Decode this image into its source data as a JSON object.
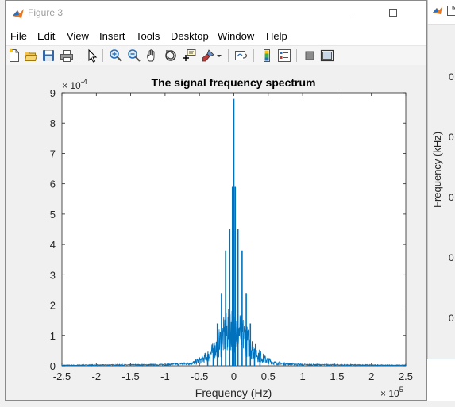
{
  "window": {
    "title": "Figure 3",
    "menu": [
      "File",
      "Edit",
      "View",
      "Insert",
      "Tools",
      "Desktop",
      "Window",
      "Help"
    ]
  },
  "toolbar": {
    "icons": [
      "new-figure-icon",
      "open-file-icon",
      "save-icon",
      "print-icon",
      "pointer-icon",
      "zoom-in-icon",
      "zoom-out-icon",
      "pan-icon",
      "rotate-3d-icon",
      "data-cursor-icon",
      "brush-icon",
      "link-plot-icon",
      "colorbar-icon",
      "legend-icon",
      "hide-plot-tools-icon",
      "show-plot-tools-icon"
    ]
  },
  "chart_data": {
    "type": "line",
    "title": "The signal frequency spectrum",
    "xlabel": "Frequency (Hz)",
    "ylabel": "",
    "x_exponent_label": "10",
    "x_exponent": "5",
    "y_exponent_label": "10",
    "y_exponent": "-4",
    "xlim": [
      -2.5,
      2.5
    ],
    "ylim": [
      0,
      9
    ],
    "xticks": [
      "-2.5",
      "-2",
      "-1.5",
      "-1",
      "-0.5",
      "0",
      "0.5",
      "1",
      "1.5",
      "2",
      "2.5"
    ],
    "yticks": [
      "0",
      "1",
      "2",
      "3",
      "4",
      "5",
      "6",
      "7",
      "8",
      "9"
    ],
    "grid": false,
    "line_color": "#0072BD",
    "spectrum_peaks": {
      "x": [
        0,
        -0.02,
        0.02,
        -0.06,
        0.06,
        -0.12,
        0.12,
        -0.18,
        0.18,
        -0.24,
        0.24,
        -0.3,
        0.3,
        -0.38,
        0.38
      ],
      "y": [
        8.8,
        5.9,
        5.9,
        4.5,
        4.5,
        3.8,
        3.8,
        2.4,
        2.4,
        1.4,
        1.4,
        0.55,
        0.55,
        0.35,
        0.35
      ]
    },
    "envelope": {
      "x": [
        -2.5,
        -1.0,
        -0.6,
        -0.45,
        -0.35,
        -0.25,
        -0.15,
        0,
        0.15,
        0.25,
        0.35,
        0.45,
        0.6,
        1.0,
        2.5
      ],
      "y": [
        0.03,
        0.06,
        0.15,
        0.35,
        0.6,
        1.0,
        1.6,
        2.2,
        1.6,
        1.0,
        0.6,
        0.35,
        0.15,
        0.06,
        0.03
      ]
    }
  },
  "background_window": {
    "ylabel": "Frequency (kHz)",
    "ticks": [
      "0",
      "0",
      "0",
      "0",
      "0"
    ]
  }
}
